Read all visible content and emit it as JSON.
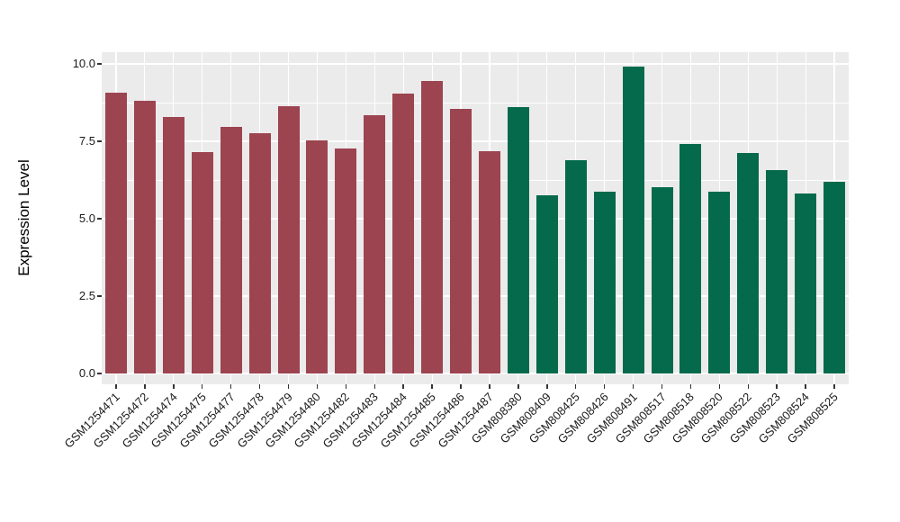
{
  "figure": {
    "background": "#FFFFFF",
    "panel_background": "#EBEBEB",
    "gridline_color": "#FFFFFF",
    "axis_text_color": "#1A1A1A",
    "tick_color": "#333333"
  },
  "chart_data": {
    "type": "bar",
    "title": "",
    "xlabel": "",
    "ylabel": "Expression Level",
    "ylim": [
      0,
      10.4
    ],
    "grid": true,
    "legend_position": "none",
    "yticks": [
      0.0,
      2.5,
      5.0,
      7.5,
      10.0
    ],
    "ytick_labels": [
      "0.0",
      "2.5",
      "5.0",
      "7.5",
      "10.0"
    ],
    "y_minor_ticks": [
      1.25,
      3.75,
      6.25,
      8.75
    ],
    "series": [
      {
        "name": "dark-red-group",
        "color": "#9C4450",
        "categories": [
          "GSM1254471",
          "GSM1254472",
          "GSM1254474",
          "GSM1254475",
          "GSM1254477",
          "GSM1254478",
          "GSM1254479",
          "GSM1254480",
          "GSM1254482",
          "GSM1254483",
          "GSM1254484",
          "GSM1254485",
          "GSM1254486",
          "GSM1254487"
        ],
        "values": [
          9.08,
          8.82,
          8.28,
          7.15,
          7.97,
          7.76,
          8.62,
          7.52,
          7.26,
          8.35,
          9.05,
          9.44,
          8.55,
          7.19
        ]
      },
      {
        "name": "dark-green-group",
        "color": "#046A4B",
        "categories": [
          "GSM808380",
          "GSM808409",
          "GSM808425",
          "GSM808426",
          "GSM808491",
          "GSM808517",
          "GSM808518",
          "GSM808520",
          "GSM808522",
          "GSM808523",
          "GSM808524",
          "GSM808525"
        ],
        "values": [
          8.6,
          5.76,
          6.9,
          5.86,
          9.9,
          6.02,
          7.4,
          5.88,
          7.11,
          6.56,
          5.81,
          6.19
        ]
      }
    ]
  }
}
